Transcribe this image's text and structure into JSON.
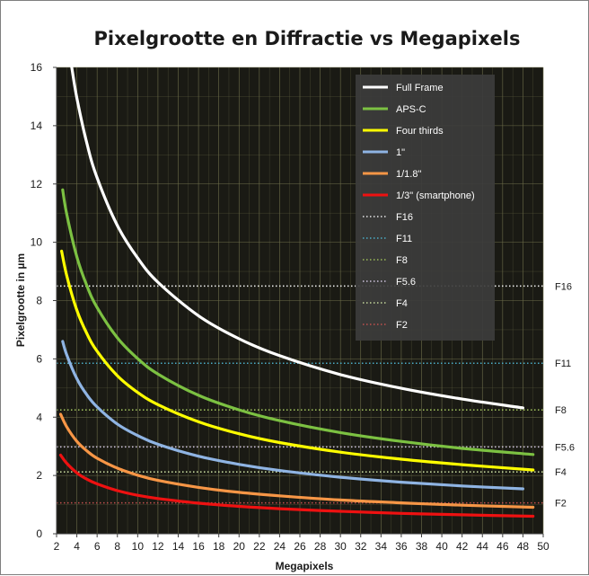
{
  "chart_data": {
    "type": "line",
    "title": "Pixelgrootte en Diffractie vs Megapixels",
    "xlabel": "Megapixels",
    "ylabel": "Pixelgrootte in µm",
    "xlim": [
      2,
      50
    ],
    "ylim": [
      0,
      16
    ],
    "xticks": [
      2,
      4,
      6,
      8,
      10,
      12,
      14,
      16,
      18,
      20,
      22,
      24,
      26,
      28,
      30,
      32,
      34,
      36,
      38,
      40,
      42,
      44,
      46,
      48,
      50
    ],
    "yticks": [
      0,
      2,
      4,
      6,
      8,
      10,
      12,
      14,
      16
    ],
    "grid": true,
    "legend_position": "top-right",
    "background_color": "#1a1a14",
    "grid_color": "#6e6e4a",
    "series": [
      {
        "name": "Full Frame",
        "color": "#ffffff",
        "style": "solid",
        "x": [
          3.5,
          4,
          5,
          6,
          8,
          10,
          12,
          16,
          20,
          24,
          30,
          36,
          42,
          48
        ],
        "y": [
          16.0,
          14.95,
          13.38,
          12.21,
          10.57,
          9.46,
          8.63,
          7.48,
          6.69,
          6.11,
          5.46,
          4.99,
          4.62,
          4.32
        ]
      },
      {
        "name": "APS-C",
        "color": "#7cc142",
        "style": "solid",
        "x": [
          2.6,
          3,
          4,
          5,
          6,
          8,
          10,
          12,
          16,
          20,
          24,
          30,
          36,
          42,
          49
        ],
        "y": [
          11.8,
          10.97,
          9.5,
          8.5,
          7.76,
          6.72,
          6.01,
          5.48,
          4.75,
          4.25,
          3.88,
          3.47,
          3.17,
          2.93,
          2.72
        ]
      },
      {
        "name": "Four thirds",
        "color": "#ffff00",
        "style": "solid",
        "x": [
          2.5,
          3,
          4,
          5,
          6,
          8,
          10,
          12,
          16,
          20,
          24,
          30,
          36,
          42,
          49
        ],
        "y": [
          9.7,
          8.86,
          7.67,
          6.86,
          6.26,
          5.42,
          4.85,
          4.43,
          3.84,
          3.43,
          3.13,
          2.8,
          2.56,
          2.37,
          2.19
        ]
      },
      {
        "name": "1\"",
        "color": "#8fb4e3",
        "style": "solid",
        "x": [
          2.6,
          3,
          4,
          5,
          6,
          8,
          10,
          12,
          16,
          20,
          24,
          30,
          36,
          42,
          48
        ],
        "y": [
          6.6,
          6.14,
          5.32,
          4.76,
          4.35,
          3.76,
          3.37,
          3.07,
          2.66,
          2.38,
          2.17,
          1.94,
          1.77,
          1.64,
          1.54
        ]
      },
      {
        "name": "1/1.8\"",
        "color": "#f79646",
        "style": "solid",
        "x": [
          2.4,
          3,
          4,
          5,
          6,
          8,
          10,
          12,
          16,
          20,
          24,
          30,
          36,
          42,
          49
        ],
        "y": [
          4.1,
          3.67,
          3.17,
          2.84,
          2.59,
          2.25,
          2.01,
          1.83,
          1.59,
          1.42,
          1.3,
          1.16,
          1.06,
          0.98,
          0.91
        ]
      },
      {
        "name": "1/3\" (smartphone)",
        "color": "#ee1111",
        "style": "solid",
        "x": [
          2.4,
          3,
          4,
          5,
          6,
          8,
          10,
          12,
          16,
          20,
          24,
          30,
          36,
          42,
          49
        ],
        "y": [
          2.7,
          2.42,
          2.09,
          1.87,
          1.71,
          1.48,
          1.32,
          1.21,
          1.05,
          0.94,
          0.86,
          0.77,
          0.7,
          0.65,
          0.6
        ]
      },
      {
        "name": "F16",
        "color": "#e8e8e8",
        "style": "dotted",
        "x": [
          2,
          50
        ],
        "y": [
          8.5,
          8.5
        ]
      },
      {
        "name": "F11",
        "color": "#4bacc6",
        "style": "dotted",
        "x": [
          2,
          50
        ],
        "y": [
          5.85,
          5.85
        ]
      },
      {
        "name": "F8",
        "color": "#9bbb59",
        "style": "dotted",
        "x": [
          2,
          50
        ],
        "y": [
          4.25,
          4.25
        ]
      },
      {
        "name": "F5.6",
        "color": "#ccc1da",
        "style": "dotted",
        "x": [
          2,
          50
        ],
        "y": [
          2.98,
          2.98
        ]
      },
      {
        "name": "F4",
        "color": "#c3d69b",
        "style": "dotted",
        "x": [
          2,
          50
        ],
        "y": [
          2.12,
          2.12
        ]
      },
      {
        "name": "F2",
        "color": "#c0504d",
        "style": "dotted",
        "x": [
          2,
          50
        ],
        "y": [
          1.06,
          1.06
        ]
      }
    ],
    "annotations": [
      {
        "text": "F16",
        "y": 8.5
      },
      {
        "text": "F11",
        "y": 5.85
      },
      {
        "text": "F8",
        "y": 4.25
      },
      {
        "text": "F5.6",
        "y": 2.98
      },
      {
        "text": "F4",
        "y": 2.12
      },
      {
        "text": "F2",
        "y": 1.06
      }
    ]
  }
}
